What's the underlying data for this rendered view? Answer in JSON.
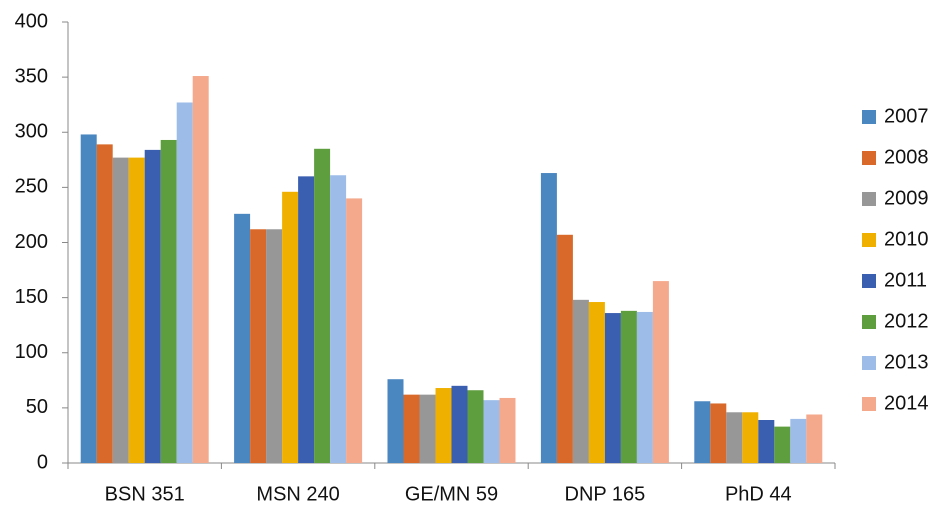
{
  "chart_data": {
    "type": "bar",
    "categories": [
      "BSN 351",
      "MSN 240",
      "GE/MN 59",
      "DNP 165",
      "PhD 44"
    ],
    "series": [
      {
        "name": "2007",
        "color": "#4a86c0",
        "values": [
          298,
          226,
          76,
          263,
          56
        ]
      },
      {
        "name": "2008",
        "color": "#d9692a",
        "values": [
          289,
          212,
          62,
          207,
          54
        ]
      },
      {
        "name": "2009",
        "color": "#979797",
        "values": [
          277,
          212,
          62,
          148,
          46
        ]
      },
      {
        "name": "2010",
        "color": "#f0b000",
        "values": [
          277,
          246,
          68,
          146,
          46
        ]
      },
      {
        "name": "2011",
        "color": "#3a5fb0",
        "values": [
          284,
          260,
          70,
          136,
          39
        ]
      },
      {
        "name": "2012",
        "color": "#5e9e3e",
        "values": [
          293,
          285,
          66,
          138,
          33
        ]
      },
      {
        "name": "2013",
        "color": "#9dbde8",
        "values": [
          327,
          261,
          57,
          137,
          40
        ]
      },
      {
        "name": "2014",
        "color": "#f4a98c",
        "values": [
          351,
          240,
          59,
          165,
          44
        ]
      }
    ],
    "ylim": [
      0,
      400
    ],
    "yticks": [
      0,
      50,
      100,
      150,
      200,
      250,
      300,
      350,
      400
    ],
    "grid": false,
    "legend": "right"
  }
}
